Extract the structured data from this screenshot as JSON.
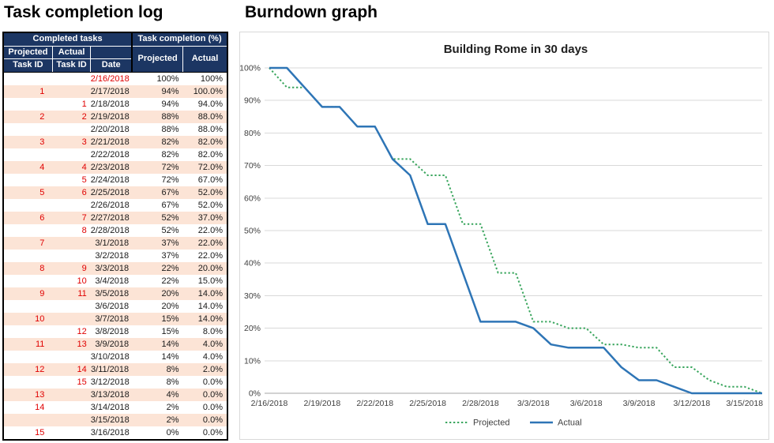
{
  "titles": {
    "left": "Task completion log",
    "right": "Burndown graph"
  },
  "table": {
    "group_headers": [
      "Completed tasks",
      "Task completion (%)"
    ],
    "col_headers": {
      "projected_id_line1": "Projected",
      "projected_id_line2": "Task ID",
      "actual_id_line1": "Actual",
      "actual_id_line2": "Task ID",
      "date": "Date",
      "projected_pct": "Projected",
      "actual_pct": "Actual"
    },
    "colors": {
      "header_bg": "#1c3663",
      "header_text": "#ffffff",
      "row_alt_bg": "#fce4d6",
      "row_bg": "#ffffff",
      "id_red": "#e00000",
      "text": "#1a1a1a",
      "border": "#000000"
    },
    "rows": [
      {
        "pid": "",
        "aid": "",
        "date": "2/16/2018",
        "proj": "100%",
        "act": "100%",
        "date_red": true
      },
      {
        "pid": "1",
        "aid": "",
        "date": "2/17/2018",
        "proj": "94%",
        "act": "100.0%"
      },
      {
        "pid": "",
        "aid": "1",
        "date": "2/18/2018",
        "proj": "94%",
        "act": "94.0%"
      },
      {
        "pid": "2",
        "aid": "2",
        "date": "2/19/2018",
        "proj": "88%",
        "act": "88.0%"
      },
      {
        "pid": "",
        "aid": "",
        "date": "2/20/2018",
        "proj": "88%",
        "act": "88.0%"
      },
      {
        "pid": "3",
        "aid": "3",
        "date": "2/21/2018",
        "proj": "82%",
        "act": "82.0%"
      },
      {
        "pid": "",
        "aid": "",
        "date": "2/22/2018",
        "proj": "82%",
        "act": "82.0%"
      },
      {
        "pid": "4",
        "aid": "4",
        "date": "2/23/2018",
        "proj": "72%",
        "act": "72.0%"
      },
      {
        "pid": "",
        "aid": "5",
        "date": "2/24/2018",
        "proj": "72%",
        "act": "67.0%"
      },
      {
        "pid": "5",
        "aid": "6",
        "date": "2/25/2018",
        "proj": "67%",
        "act": "52.0%"
      },
      {
        "pid": "",
        "aid": "",
        "date": "2/26/2018",
        "proj": "67%",
        "act": "52.0%"
      },
      {
        "pid": "6",
        "aid": "7",
        "date": "2/27/2018",
        "proj": "52%",
        "act": "37.0%"
      },
      {
        "pid": "",
        "aid": "8",
        "date": "2/28/2018",
        "proj": "52%",
        "act": "22.0%"
      },
      {
        "pid": "7",
        "aid": "",
        "date": "3/1/2018",
        "proj": "37%",
        "act": "22.0%"
      },
      {
        "pid": "",
        "aid": "",
        "date": "3/2/2018",
        "proj": "37%",
        "act": "22.0%"
      },
      {
        "pid": "8",
        "aid": "9",
        "date": "3/3/2018",
        "proj": "22%",
        "act": "20.0%"
      },
      {
        "pid": "",
        "aid": "10",
        "date": "3/4/2018",
        "proj": "22%",
        "act": "15.0%"
      },
      {
        "pid": "9",
        "aid": "11",
        "date": "3/5/2018",
        "proj": "20%",
        "act": "14.0%"
      },
      {
        "pid": "",
        "aid": "",
        "date": "3/6/2018",
        "proj": "20%",
        "act": "14.0%"
      },
      {
        "pid": "10",
        "aid": "",
        "date": "3/7/2018",
        "proj": "15%",
        "act": "14.0%"
      },
      {
        "pid": "",
        "aid": "12",
        "date": "3/8/2018",
        "proj": "15%",
        "act": "8.0%"
      },
      {
        "pid": "11",
        "aid": "13",
        "date": "3/9/2018",
        "proj": "14%",
        "act": "4.0%"
      },
      {
        "pid": "",
        "aid": "",
        "date": "3/10/2018",
        "proj": "14%",
        "act": "4.0%"
      },
      {
        "pid": "12",
        "aid": "14",
        "date": "3/11/2018",
        "proj": "8%",
        "act": "2.0%"
      },
      {
        "pid": "",
        "aid": "15",
        "date": "3/12/2018",
        "proj": "8%",
        "act": "0.0%"
      },
      {
        "pid": "13",
        "aid": "",
        "date": "3/13/2018",
        "proj": "4%",
        "act": "0.0%"
      },
      {
        "pid": "14",
        "aid": "",
        "date": "3/14/2018",
        "proj": "2%",
        "act": "0.0%"
      },
      {
        "pid": "",
        "aid": "",
        "date": "3/15/2018",
        "proj": "2%",
        "act": "0.0%"
      },
      {
        "pid": "15",
        "aid": "",
        "date": "3/16/2018",
        "proj": "0%",
        "act": "0.0%"
      }
    ]
  },
  "chart_data": {
    "type": "line",
    "title": "Building Rome in 30 days",
    "x": [
      "2/16/2018",
      "2/17/2018",
      "2/18/2018",
      "2/19/2018",
      "2/20/2018",
      "2/21/2018",
      "2/22/2018",
      "2/23/2018",
      "2/24/2018",
      "2/25/2018",
      "2/26/2018",
      "2/27/2018",
      "2/28/2018",
      "3/1/2018",
      "3/2/2018",
      "3/3/2018",
      "3/4/2018",
      "3/5/2018",
      "3/6/2018",
      "3/7/2018",
      "3/8/2018",
      "3/9/2018",
      "3/10/2018",
      "3/11/2018",
      "3/12/2018",
      "3/13/2018",
      "3/14/2018",
      "3/15/2018",
      "3/16/2018"
    ],
    "series": [
      {
        "name": "Projected",
        "line_style": "dotted",
        "color": "#3aa65e",
        "values": [
          100,
          94,
          94,
          88,
          88,
          82,
          82,
          72,
          72,
          67,
          67,
          52,
          52,
          37,
          37,
          22,
          22,
          20,
          20,
          15,
          15,
          14,
          14,
          8,
          8,
          4,
          2,
          2,
          0
        ]
      },
      {
        "name": "Actual",
        "line_style": "solid",
        "color": "#2e75b6",
        "values": [
          100,
          100,
          94,
          88,
          88,
          82,
          82,
          72,
          67,
          52,
          52,
          37,
          22,
          22,
          22,
          20,
          15,
          14,
          14,
          14,
          8,
          4,
          4,
          2,
          0,
          0,
          0,
          0,
          0
        ]
      }
    ],
    "ylim": [
      0,
      100
    ],
    "ytick_labels": [
      "0%",
      "10%",
      "20%",
      "30%",
      "40%",
      "50%",
      "60%",
      "70%",
      "80%",
      "90%",
      "100%"
    ],
    "xtick_indices": [
      0,
      3,
      6,
      9,
      12,
      15,
      18,
      21,
      24,
      27
    ],
    "xtick_labels": [
      "2/16/2018",
      "2/19/2018",
      "2/22/2018",
      "2/25/2018",
      "2/28/2018",
      "3/3/2018",
      "3/6/2018",
      "3/9/2018",
      "3/12/2018",
      "3/15/2018"
    ],
    "grid": true,
    "legend_position": "bottom",
    "grid_color": "#d9d9d9",
    "axis_color": "#a6a6a6",
    "label_color": "#404040"
  }
}
